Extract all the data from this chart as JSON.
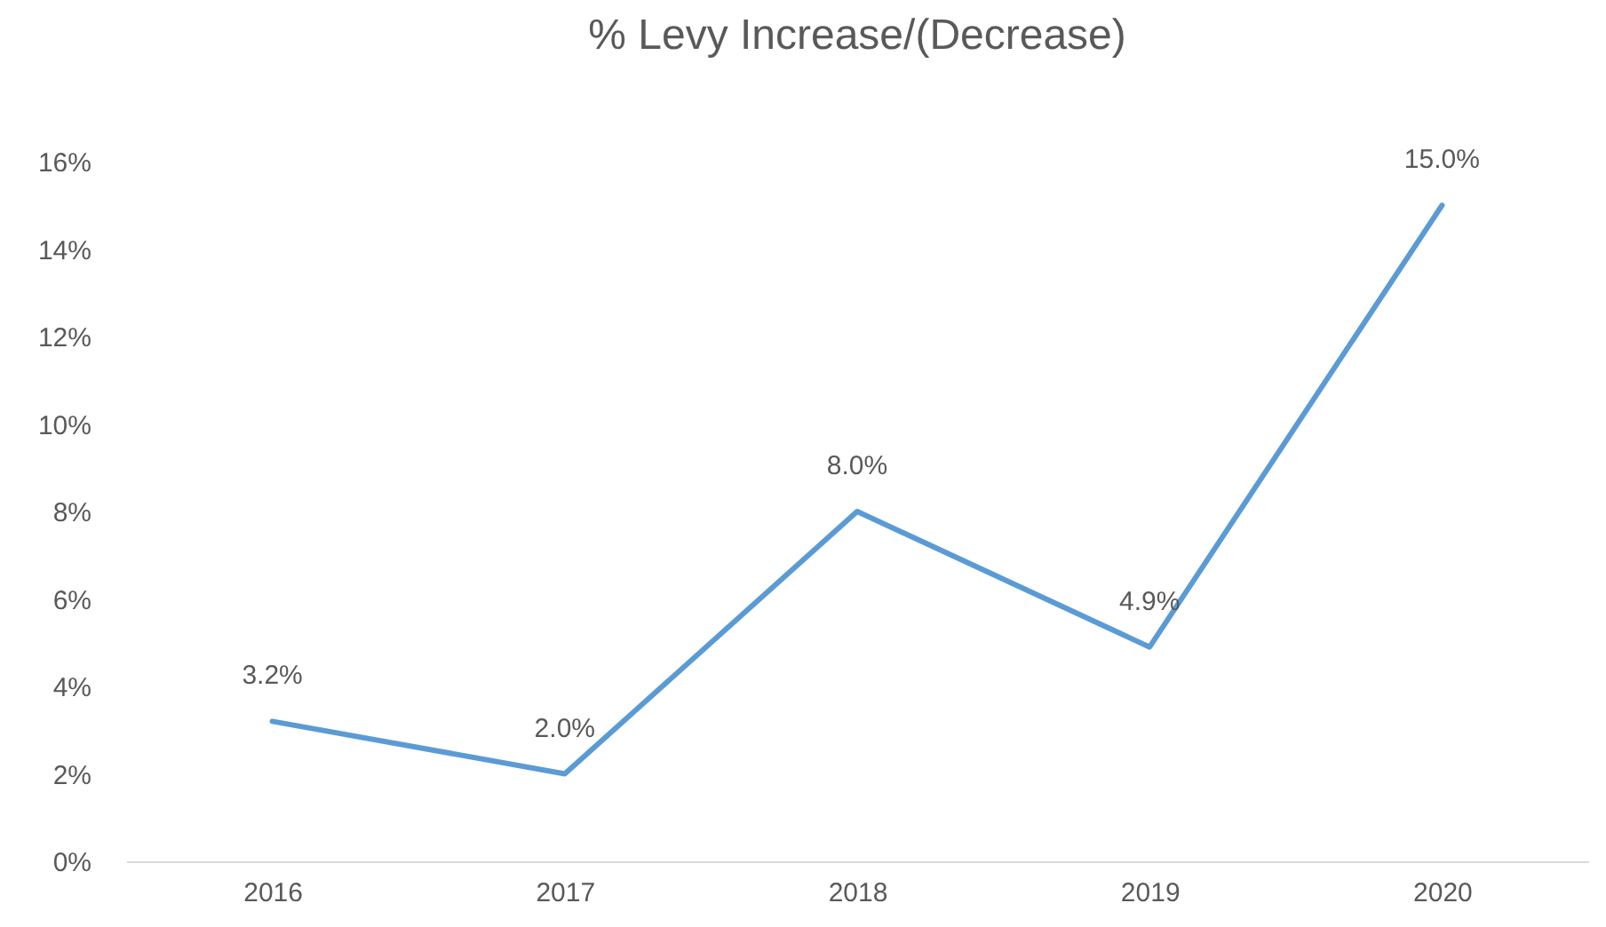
{
  "chart_data": {
    "type": "line",
    "title": "% Levy Increase/(Decrease)",
    "categories": [
      "2016",
      "2017",
      "2018",
      "2019",
      "2020"
    ],
    "series": [
      {
        "color": "#5b9bd5",
        "values": [
          3.2,
          2.0,
          8.0,
          4.9,
          15.0
        ],
        "value_labels": [
          "3.2%",
          "2.0%",
          "8.0%",
          "4.9%",
          "15.0%"
        ]
      }
    ],
    "ylim": [
      0,
      16
    ],
    "yticks": [
      {
        "value": 0,
        "label": "0%"
      },
      {
        "value": 2,
        "label": "2%"
      },
      {
        "value": 4,
        "label": "4%"
      },
      {
        "value": 6,
        "label": "6%"
      },
      {
        "value": 8,
        "label": "8%"
      },
      {
        "value": 10,
        "label": "10%"
      },
      {
        "value": 12,
        "label": "12%"
      },
      {
        "value": 14,
        "label": "14%"
      },
      {
        "value": 16,
        "label": "16%"
      }
    ],
    "grid": false,
    "marker": "none",
    "line_style": "solid"
  }
}
